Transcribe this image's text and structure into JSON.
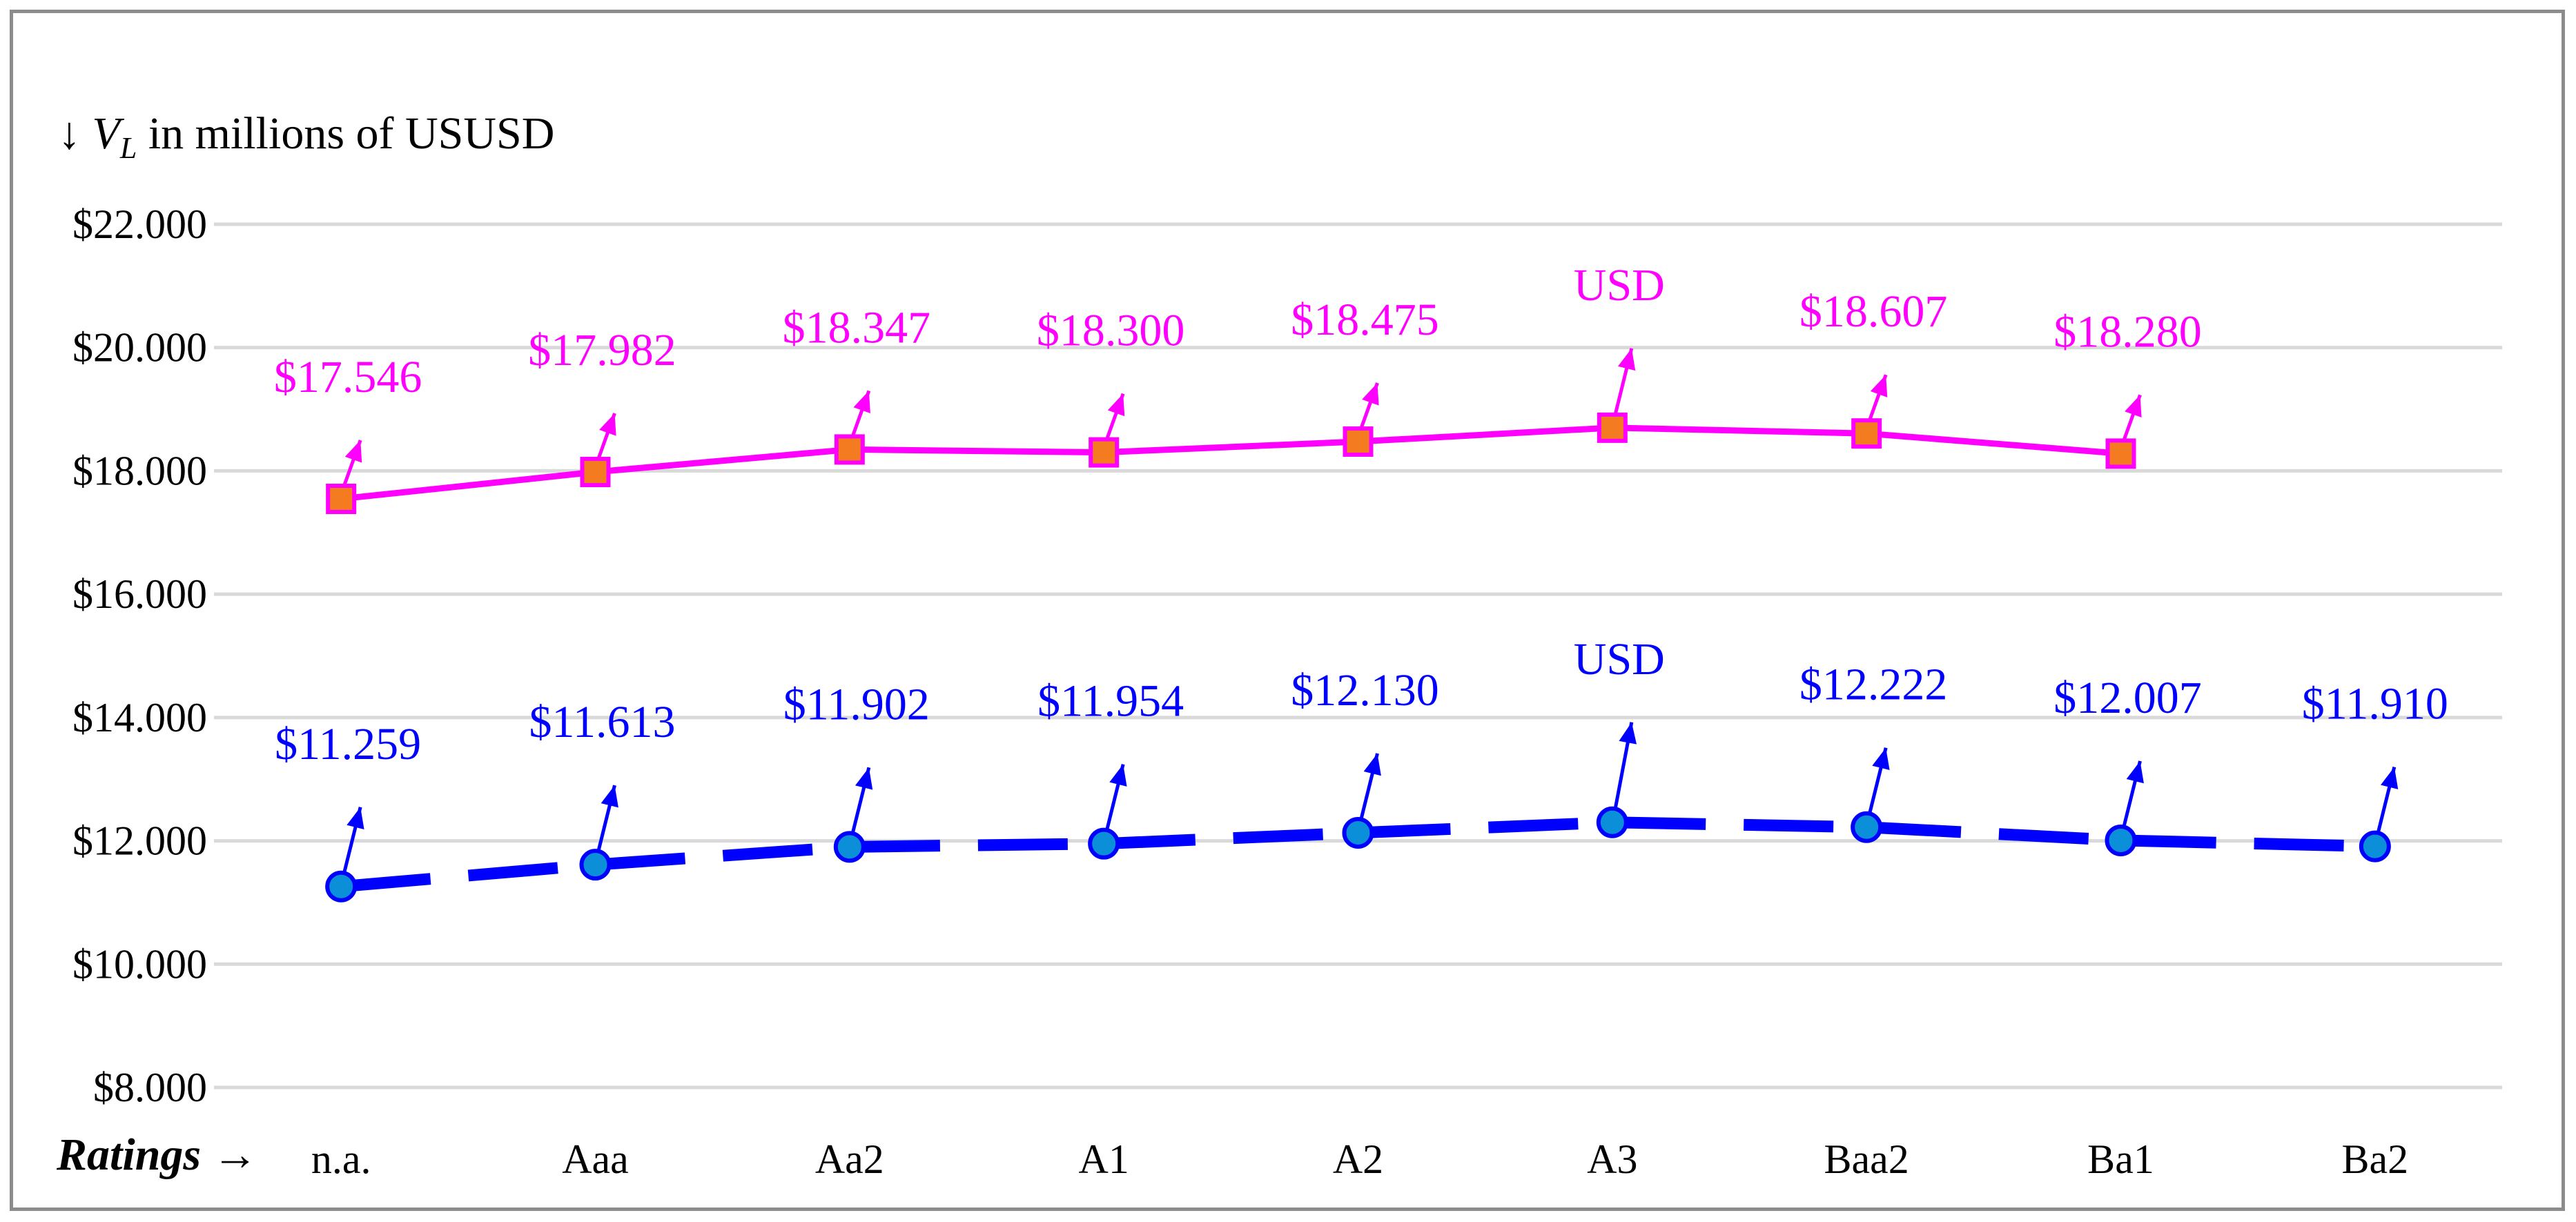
{
  "chart_data": {
    "type": "line",
    "title": "",
    "ylabel": {
      "prefix": "↓ ",
      "var": "V",
      "sub": "L",
      "suffix": " in millions of USUSD"
    },
    "xlabel": "Ratings →",
    "categories": [
      "n.a.",
      "Aaa",
      "Aa2",
      "A1",
      "A2",
      "A3",
      "Baa2",
      "Ba1",
      "Ba2"
    ],
    "ylim": [
      8000,
      22000
    ],
    "yticks": [
      {
        "value": 8000,
        "label": "$8.000"
      },
      {
        "value": 10000,
        "label": "$10.000"
      },
      {
        "value": 12000,
        "label": "$12.000"
      },
      {
        "value": 14000,
        "label": "$14.000"
      },
      {
        "value": 16000,
        "label": "$16.000"
      },
      {
        "value": 18000,
        "label": "$18.000"
      },
      {
        "value": 20000,
        "label": "$20.000"
      },
      {
        "value": 22000,
        "label": "$22.000"
      }
    ],
    "grid": true,
    "legend": "none",
    "series": [
      {
        "line_color": "#ff00ff",
        "marker_fill": "#f47b20",
        "marker": "square",
        "line_style": "solid",
        "values": [
          17546,
          17982,
          18347,
          18300,
          18475,
          18700,
          18607,
          18280,
          null
        ],
        "labels": [
          "$17.546",
          "$17.982",
          "$18.347",
          "$18.300",
          "$18.475",
          "USD",
          "$18.607",
          "$18.280",
          ""
        ]
      },
      {
        "line_color": "#0000ff",
        "marker_fill": "#0a8fd8",
        "marker": "circle",
        "line_style": "dashed",
        "values": [
          11259,
          11613,
          11902,
          11954,
          12130,
          12300,
          12222,
          12007,
          11910
        ],
        "labels": [
          "$11.259",
          "$11.613",
          "$11.902",
          "$11.954",
          "$12.130",
          "USD",
          "$12.222",
          "$12.007",
          "$11.910"
        ]
      }
    ]
  }
}
